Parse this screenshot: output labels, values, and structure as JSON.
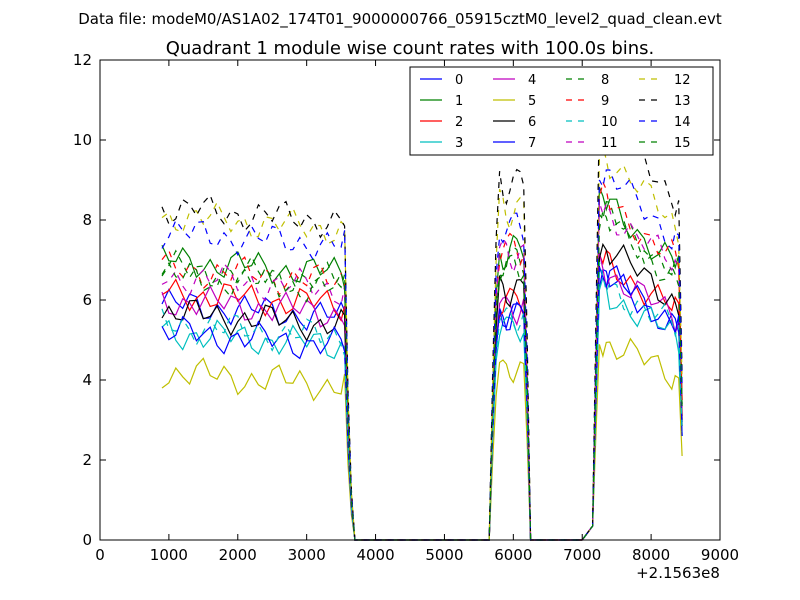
{
  "suptitle": "Data file: modeM0/AS1A02_174T01_9000000766_05915cztM0_level2_quad_clean.evt",
  "chart_data": {
    "type": "line",
    "title": "Quadrant 1 module wise count rates with 100.0s bins.",
    "xlabel": "",
    "ylabel": "",
    "x_offset_label": "+2.1563e8",
    "xlim": [
      0,
      9000
    ],
    "ylim": [
      0,
      12
    ],
    "xticks": [
      0,
      1000,
      2000,
      3000,
      4000,
      5000,
      6000,
      7000,
      8000,
      9000
    ],
    "yticks": [
      0,
      2,
      4,
      6,
      8,
      10,
      12
    ],
    "x": [
      900,
      1000,
      1100,
      1200,
      1300,
      1400,
      1500,
      1600,
      1700,
      1800,
      1900,
      2000,
      2100,
      2200,
      2300,
      2400,
      2500,
      2600,
      2700,
      2800,
      2900,
      3000,
      3100,
      3200,
      3300,
      3400,
      3500,
      3550,
      3600,
      3650,
      3700,
      3750,
      3800,
      4000,
      4500,
      5000,
      5500,
      5650,
      5700,
      5750,
      5800,
      5850,
      5900,
      5950,
      6000,
      6050,
      6100,
      6150,
      6200,
      6250,
      6300,
      7000,
      7150,
      7200,
      7250,
      7300,
      7350,
      7400,
      7500,
      7600,
      7700,
      7800,
      7900,
      8000,
      8100,
      8200,
      8300,
      8350,
      8400,
      8450
    ],
    "legend": {
      "position": "top-right",
      "ncol": 4
    },
    "series": [
      {
        "name": "0",
        "color": "#0000ff",
        "dashed": false,
        "base": 5.9,
        "high": 5.9
      },
      {
        "name": "1",
        "color": "#008000",
        "dashed": false,
        "base": 7.0,
        "high": 7.6
      },
      {
        "name": "2",
        "color": "#ff0000",
        "dashed": false,
        "base": 6.2,
        "high": 6.3
      },
      {
        "name": "3",
        "color": "#00bfbf",
        "dashed": false,
        "base": 5.2,
        "high": 5.6
      },
      {
        "name": "4",
        "color": "#bf00bf",
        "dashed": false,
        "base": 6.0,
        "high": 6.1
      },
      {
        "name": "5",
        "color": "#bfbf00",
        "dashed": false,
        "base": 4.2,
        "high": 4.5
      },
      {
        "name": "6",
        "color": "#000000",
        "dashed": false,
        "base": 5.7,
        "high": 6.6
      },
      {
        "name": "7",
        "color": "#0000ff",
        "dashed": false,
        "base": 5.2,
        "high": 6.0
      },
      {
        "name": "8",
        "color": "#008000",
        "dashed": true,
        "base": 6.8,
        "high": 7.4
      },
      {
        "name": "9",
        "color": "#ff0000",
        "dashed": true,
        "base": 6.8,
        "high": 7.7
      },
      {
        "name": "10",
        "color": "#00bfbf",
        "dashed": true,
        "base": 5.4,
        "high": 5.8
      },
      {
        "name": "11",
        "color": "#bf00bf",
        "dashed": true,
        "base": 6.6,
        "high": 7.5
      },
      {
        "name": "12",
        "color": "#bfbf00",
        "dashed": true,
        "base": 8.1,
        "high": 8.7
      },
      {
        "name": "13",
        "color": "#000000",
        "dashed": true,
        "base": 8.3,
        "high": 9.4
      },
      {
        "name": "14",
        "color": "#0000ff",
        "dashed": true,
        "base": 7.7,
        "high": 8.3
      },
      {
        "name": "15",
        "color": "#008000",
        "dashed": true,
        "base": 6.6,
        "high": 7.2
      }
    ]
  }
}
